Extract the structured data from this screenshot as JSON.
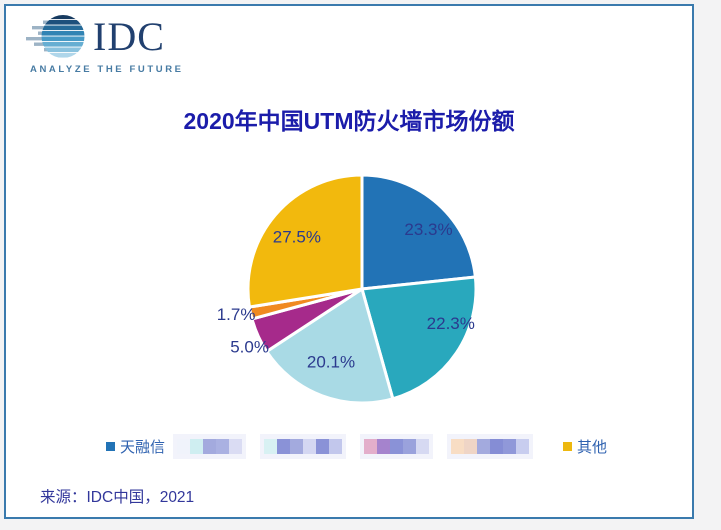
{
  "brand": {
    "logo_text": "IDC",
    "tagline": "ANALYZE THE FUTURE"
  },
  "title": "2020年中国UTM防火墙市场份额",
  "source": "来源：IDC中国，2021",
  "chart_data": {
    "type": "pie",
    "title": "2020年中国UTM防火墙市场份额",
    "unit": "%",
    "direction": "clockwise",
    "start_angle_deg": 0,
    "legend_position": "bottom",
    "label_color": "#2b3a8e",
    "slices": [
      {
        "name": "天融信",
        "value": 23.3,
        "display": "23.3%",
        "color": "#2273b6",
        "label_inside": true,
        "redacted_name": false
      },
      {
        "name": "",
        "value": 22.3,
        "display": "22.3%",
        "color": "#29a8bd",
        "label_inside": true,
        "redacted_name": true
      },
      {
        "name": "",
        "value": 20.1,
        "display": "20.1%",
        "color": "#a9dae5",
        "label_inside": true,
        "redacted_name": true
      },
      {
        "name": "",
        "value": 5.0,
        "display": "5.0%",
        "color": "#a62a8b",
        "label_inside": false,
        "redacted_name": true
      },
      {
        "name": "",
        "value": 1.7,
        "display": "1.7%",
        "color": "#f08a21",
        "label_inside": false,
        "redacted_name": true
      },
      {
        "name": "其他",
        "value": 27.5,
        "display": "27.5%",
        "color": "#f2b90d",
        "label_inside": true,
        "redacted_name": false
      }
    ]
  },
  "legend": {
    "first": {
      "label": "天融信",
      "color": "#2273b6"
    },
    "last": {
      "label": "其他",
      "color": "#edb80f"
    },
    "redacted_groups": [
      [
        "#f0f3fb",
        "#cfeef1",
        "#a3aade",
        "#aab1e2",
        "#dadcf3"
      ],
      [
        "#d8f1f3",
        "#8a92d7",
        "#a3aade",
        "#d4d7f2",
        "#8a92d7",
        "#c2c7ec"
      ],
      [
        "#e3aecb",
        "#a583cd",
        "#8a92d7",
        "#9aa2dc",
        "#d6d9f2"
      ],
      [
        "#f8ddc4",
        "#efd5c6",
        "#a3aade",
        "#858dd5",
        "#9098d9",
        "#c8cdef"
      ]
    ]
  }
}
